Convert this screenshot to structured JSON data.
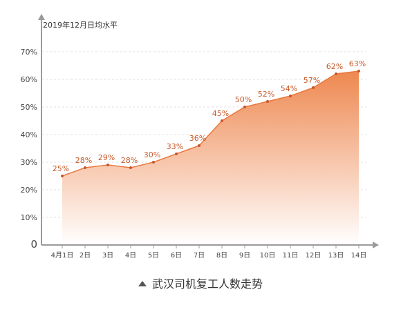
{
  "chart_data": {
    "type": "area",
    "unit_label": "2019年12月日均水平",
    "categories": [
      "4月1日",
      "2日",
      "3日",
      "4日",
      "5日",
      "6日",
      "7日",
      "8日",
      "9日",
      "10日",
      "11日",
      "12日",
      "13日",
      "14日"
    ],
    "values": [
      25,
      28,
      29,
      28,
      30,
      33,
      36,
      45,
      50,
      52,
      54,
      57,
      62,
      63
    ],
    "data_labels": [
      "25%",
      "28%",
      "29%",
      "28%",
      "30%",
      "33%",
      "36%",
      "45%",
      "50%",
      "52%",
      "54%",
      "57%",
      "62%",
      "63%"
    ],
    "y_ticks": [
      "0",
      "10%",
      "20%",
      "30%",
      "40%",
      "50%",
      "60%",
      "70%"
    ],
    "ylim": [
      0,
      70
    ],
    "grid": true,
    "colors": {
      "area_top": "#ee8850",
      "area_bottom": "#ffffff",
      "line": "#e8783e",
      "point": "#c8552a",
      "label": "#c75a2a",
      "axis": "#9a9a9a",
      "grid": "#e2e2e2"
    }
  },
  "caption": "武汉司机复工人数走势"
}
